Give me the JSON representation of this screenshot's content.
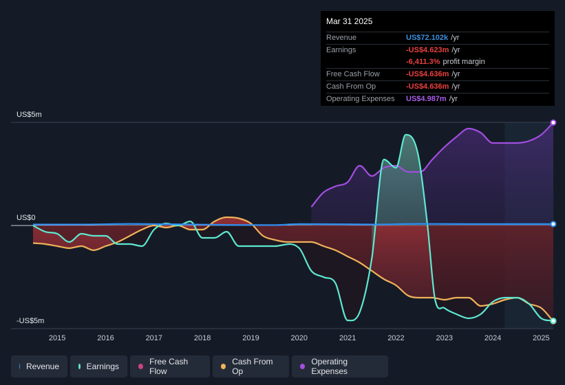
{
  "tooltip": {
    "date": "Mar 31 2025",
    "rows": [
      {
        "label": "Revenue",
        "value": "US$72.102k",
        "unit": "/yr",
        "color": "#3b8fe0"
      },
      {
        "label": "Earnings",
        "value": "-US$4.623m",
        "unit": "/yr",
        "color": "#e8423f"
      },
      {
        "label": "",
        "value": "-6,411.3%",
        "unit": "profit margin",
        "color": "#e8423f"
      },
      {
        "label": "Free Cash Flow",
        "value": "-US$4.636m",
        "unit": "/yr",
        "color": "#e8423f"
      },
      {
        "label": "Cash From Op",
        "value": "-US$4.636m",
        "unit": "/yr",
        "color": "#e8423f"
      },
      {
        "label": "Operating Expenses",
        "value": "US$4.987m",
        "unit": "/yr",
        "color": "#a95de8"
      }
    ]
  },
  "legend": [
    {
      "label": "Revenue",
      "color": "#2f8ef0"
    },
    {
      "label": "Earnings",
      "color": "#5ee8d0"
    },
    {
      "label": "Free Cash Flow",
      "color": "#c8447a"
    },
    {
      "label": "Cash From Op",
      "color": "#f0b25a"
    },
    {
      "label": "Operating Expenses",
      "color": "#a24ee0"
    }
  ],
  "chart_data": {
    "type": "line",
    "title": "",
    "xlabel": "",
    "ylabel": "",
    "y_tick_labels": [
      {
        "value": 5,
        "label": "US$5m"
      },
      {
        "value": 0,
        "label": "US$0"
      },
      {
        "value": -5,
        "label": "-US$5m"
      }
    ],
    "ylim": [
      -5,
      5
    ],
    "xlim": [
      2014.5,
      2025.25
    ],
    "x_ticks": [
      2015,
      2016,
      2017,
      2018,
      2019,
      2020,
      2021,
      2022,
      2023,
      2024,
      2025
    ],
    "x_tick_labels": [
      "2015",
      "2016",
      "2017",
      "2018",
      "2019",
      "2020",
      "2021",
      "2022",
      "2023",
      "2024",
      "2025"
    ],
    "highlight_from": 2024.25,
    "series": [
      {
        "name": "Revenue",
        "color": "#2f8ef0",
        "points": [
          [
            2014.5,
            0.05
          ],
          [
            2015.5,
            0.05
          ],
          [
            2016.5,
            0.08
          ],
          [
            2017.5,
            0.06
          ],
          [
            2018.5,
            0.03
          ],
          [
            2019.5,
            0.02
          ],
          [
            2020.0,
            0.07
          ],
          [
            2021.0,
            0.06
          ],
          [
            2021.5,
            0.05
          ],
          [
            2022.5,
            0.08
          ],
          [
            2023.5,
            0.07
          ],
          [
            2024.5,
            0.07
          ],
          [
            2025.25,
            0.07
          ]
        ]
      },
      {
        "name": "Earnings",
        "color": "#5ee8d0",
        "points": [
          [
            2014.5,
            0.0
          ],
          [
            2014.75,
            -0.3
          ],
          [
            2015.0,
            -0.4
          ],
          [
            2015.25,
            -0.8
          ],
          [
            2015.5,
            -0.4
          ],
          [
            2015.75,
            -0.5
          ],
          [
            2016.0,
            -0.5
          ],
          [
            2016.25,
            -0.9
          ],
          [
            2016.5,
            -0.9
          ],
          [
            2016.75,
            -1.0
          ],
          [
            2017.0,
            -0.2
          ],
          [
            2017.25,
            0.1
          ],
          [
            2017.5,
            0.0
          ],
          [
            2017.75,
            0.2
          ],
          [
            2018.0,
            -0.6
          ],
          [
            2018.25,
            -0.6
          ],
          [
            2018.5,
            -0.3
          ],
          [
            2018.75,
            -1.0
          ],
          [
            2019.0,
            -1.0
          ],
          [
            2019.5,
            -1.0
          ],
          [
            2020.0,
            -1.1
          ],
          [
            2020.25,
            -2.2
          ],
          [
            2020.5,
            -2.5
          ],
          [
            2020.75,
            -2.8
          ],
          [
            2021.0,
            -4.6
          ],
          [
            2021.25,
            -4.2
          ],
          [
            2021.5,
            -1.6
          ],
          [
            2021.75,
            3.2
          ],
          [
            2022.0,
            2.8
          ],
          [
            2022.2,
            4.4
          ],
          [
            2022.45,
            3.5
          ],
          [
            2022.65,
            0.0
          ],
          [
            2022.8,
            -3.5
          ],
          [
            2023.0,
            -4.0
          ],
          [
            2023.25,
            -4.3
          ],
          [
            2023.5,
            -4.5
          ],
          [
            2023.75,
            -4.3
          ],
          [
            2024.0,
            -3.7
          ],
          [
            2024.25,
            -3.5
          ],
          [
            2024.5,
            -3.5
          ],
          [
            2024.75,
            -3.8
          ],
          [
            2025.0,
            -4.5
          ],
          [
            2025.25,
            -4.62
          ]
        ]
      },
      {
        "name": "Cash From Op",
        "color": "#f0b25a",
        "points": [
          [
            2014.5,
            -0.85
          ],
          [
            2014.75,
            -0.9
          ],
          [
            2015.0,
            -1.0
          ],
          [
            2015.25,
            -1.1
          ],
          [
            2015.5,
            -1.0
          ],
          [
            2015.75,
            -1.2
          ],
          [
            2016.0,
            -1.0
          ],
          [
            2016.25,
            -0.8
          ],
          [
            2016.5,
            -0.5
          ],
          [
            2016.75,
            -0.2
          ],
          [
            2017.0,
            0.0
          ],
          [
            2017.25,
            -0.1
          ],
          [
            2017.5,
            0.0
          ],
          [
            2017.75,
            -0.2
          ],
          [
            2018.0,
            -0.2
          ],
          [
            2018.25,
            0.2
          ],
          [
            2018.5,
            0.4
          ],
          [
            2018.75,
            0.35
          ],
          [
            2019.0,
            0.1
          ],
          [
            2019.25,
            -0.5
          ],
          [
            2019.5,
            -0.7
          ],
          [
            2019.75,
            -0.8
          ],
          [
            2020.0,
            -0.8
          ],
          [
            2020.25,
            -0.8
          ],
          [
            2020.5,
            -1.0
          ],
          [
            2020.75,
            -1.2
          ],
          [
            2021.0,
            -1.5
          ],
          [
            2021.25,
            -1.8
          ],
          [
            2021.5,
            -2.2
          ],
          [
            2021.75,
            -2.6
          ],
          [
            2022.0,
            -2.9
          ],
          [
            2022.25,
            -3.4
          ],
          [
            2022.5,
            -3.5
          ],
          [
            2022.75,
            -3.5
          ],
          [
            2023.0,
            -3.6
          ],
          [
            2023.25,
            -3.5
          ],
          [
            2023.5,
            -3.5
          ],
          [
            2023.75,
            -3.9
          ],
          [
            2024.0,
            -3.8
          ],
          [
            2024.25,
            -3.6
          ],
          [
            2024.5,
            -3.5
          ],
          [
            2024.75,
            -3.8
          ],
          [
            2025.0,
            -4.0
          ],
          [
            2025.25,
            -4.64
          ]
        ]
      },
      {
        "name": "Operating Expenses",
        "color": "#a24ee0",
        "points": [
          [
            2020.25,
            0.9
          ],
          [
            2020.5,
            1.6
          ],
          [
            2020.75,
            1.9
          ],
          [
            2021.0,
            2.1
          ],
          [
            2021.25,
            2.9
          ],
          [
            2021.5,
            2.4
          ],
          [
            2021.75,
            2.8
          ],
          [
            2022.0,
            2.9
          ],
          [
            2022.25,
            2.6
          ],
          [
            2022.5,
            2.6
          ],
          [
            2022.75,
            3.2
          ],
          [
            2023.0,
            3.8
          ],
          [
            2023.25,
            4.3
          ],
          [
            2023.5,
            4.7
          ],
          [
            2023.75,
            4.5
          ],
          [
            2024.0,
            4.0
          ],
          [
            2024.25,
            4.0
          ],
          [
            2024.5,
            4.0
          ],
          [
            2024.75,
            4.1
          ],
          [
            2025.0,
            4.4
          ],
          [
            2025.25,
            4.99
          ]
        ]
      }
    ]
  }
}
